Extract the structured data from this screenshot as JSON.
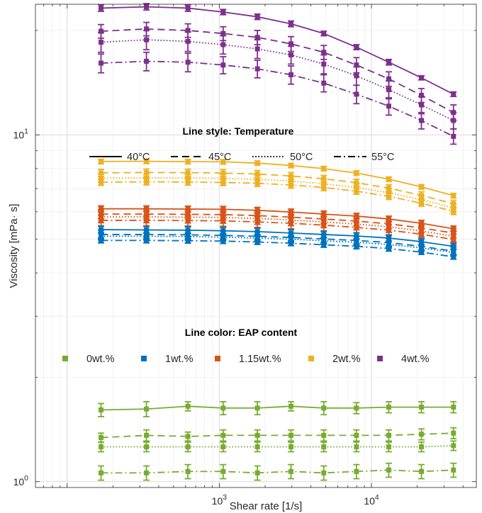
{
  "chart_data": {
    "type": "line",
    "xlabel": "Shear rate [1/s]",
    "ylabel": "Viscosity [mPa· s]",
    "xscale": "log",
    "yscale": "log",
    "xlim": [
      61.9,
      48900
    ],
    "ylim": [
      0.962,
      23.8
    ],
    "x_ticks": [
      {
        "value": 1000,
        "base": "10",
        "exp": "3"
      },
      {
        "value": 10000,
        "base": "10",
        "exp": "4"
      }
    ],
    "y_ticks": [
      {
        "value": 1,
        "label": "10",
        "exp": "0"
      },
      {
        "value": 10,
        "label": "10",
        "exp": "1"
      }
    ],
    "grid": true,
    "x": [
      167,
      332,
      622,
      1060,
      1780,
      2960,
      4860,
      7970,
      13000,
      21300,
      34600
    ],
    "legend_temperature": {
      "title": "Line style: Temperature",
      "entries": [
        {
          "label": "40°C",
          "style": "solid"
        },
        {
          "label": "45°C",
          "style": "dashed"
        },
        {
          "label": "50°C",
          "style": "dotted"
        },
        {
          "label": "55°C",
          "style": "dashdot"
        }
      ]
    },
    "legend_content": {
      "title": "Line color: EAP content",
      "entries": [
        {
          "label": "0wt.%",
          "color": "#77ac30"
        },
        {
          "label": "1wt.%",
          "color": "#0072bd"
        },
        {
          "label": "1.15wt.%",
          "color": "#d95319"
        },
        {
          "label": "2wt.%",
          "color": "#edb120"
        },
        {
          "label": "4wt.%",
          "color": "#7e2f8e"
        }
      ]
    },
    "series": [
      {
        "content": "4wt.%",
        "temperature": "40°C",
        "color": "#7e2f8e",
        "style": "solid",
        "values": [
          23.2,
          23.4,
          23.2,
          22.6,
          21.9,
          20.9,
          19.6,
          17.9,
          16.2,
          14.6,
          13.1
        ],
        "errors": [
          0.5,
          0.5,
          0.5,
          0.4,
          0.4,
          0.4,
          0.3,
          0.3,
          0.3,
          0.2,
          0.2
        ]
      },
      {
        "content": "4wt.%",
        "temperature": "45°C",
        "color": "#7e2f8e",
        "style": "dashed",
        "values": [
          19.9,
          20.2,
          20.0,
          19.6,
          19.1,
          18.3,
          17.3,
          15.9,
          14.5,
          13.0,
          11.6
        ],
        "errors": [
          0.9,
          0.9,
          0.9,
          0.9,
          0.9,
          0.9,
          0.8,
          0.8,
          0.7,
          0.6,
          0.6
        ]
      },
      {
        "content": "4wt.%",
        "temperature": "50°C",
        "color": "#7e2f8e",
        "style": "dotted",
        "values": [
          18.5,
          18.8,
          18.6,
          18.2,
          17.7,
          17.0,
          16.0,
          14.8,
          13.5,
          12.2,
          11.0
        ],
        "errors": [
          1.2,
          1.2,
          1.2,
          1.1,
          1.1,
          1.0,
          1.0,
          0.9,
          0.8,
          0.7,
          0.6
        ]
      },
      {
        "content": "4wt.%",
        "temperature": "55°C",
        "color": "#7e2f8e",
        "style": "dashdot",
        "values": [
          16.1,
          16.3,
          16.2,
          15.9,
          15.5,
          14.9,
          14.1,
          13.1,
          12.1,
          11.0,
          9.9
        ],
        "errors": [
          1.0,
          1.0,
          1.0,
          0.9,
          0.9,
          0.9,
          0.8,
          0.8,
          0.7,
          0.6,
          0.5
        ]
      },
      {
        "content": "2wt.%",
        "temperature": "40°C",
        "color": "#edb120",
        "style": "solid",
        "values": [
          8.38,
          8.39,
          8.37,
          8.36,
          8.29,
          8.16,
          7.99,
          7.76,
          7.45,
          7.08,
          6.68
        ],
        "errors": [
          0.13,
          0.13,
          0.13,
          0.13,
          0.12,
          0.12,
          0.12,
          0.12,
          0.11,
          0.11,
          0.1
        ]
      },
      {
        "content": "2wt.%",
        "temperature": "45°C",
        "color": "#edb120",
        "style": "dashed",
        "values": [
          7.77,
          7.79,
          7.78,
          7.76,
          7.71,
          7.61,
          7.47,
          7.28,
          7.02,
          6.69,
          6.33
        ],
        "errors": [
          0.18,
          0.18,
          0.18,
          0.18,
          0.18,
          0.18,
          0.17,
          0.17,
          0.16,
          0.16,
          0.15
        ]
      },
      {
        "content": "2wt.%",
        "temperature": "50°C",
        "color": "#edb120",
        "style": "dotted",
        "values": [
          7.5,
          7.52,
          7.51,
          7.49,
          7.45,
          7.36,
          7.23,
          7.05,
          6.81,
          6.5,
          6.16
        ],
        "errors": [
          0.2,
          0.2,
          0.2,
          0.2,
          0.2,
          0.2,
          0.2,
          0.19,
          0.18,
          0.18,
          0.17
        ]
      },
      {
        "content": "2wt.%",
        "temperature": "55°C",
        "color": "#edb120",
        "style": "dashdot",
        "values": [
          7.3,
          7.32,
          7.31,
          7.29,
          7.25,
          7.17,
          7.05,
          6.88,
          6.65,
          6.35,
          6.02
        ],
        "errors": [
          0.15,
          0.15,
          0.15,
          0.15,
          0.15,
          0.15,
          0.15,
          0.14,
          0.14,
          0.13,
          0.13
        ]
      },
      {
        "content": "1.15wt.%",
        "temperature": "40°C",
        "color": "#d95319",
        "style": "solid",
        "values": [
          6.12,
          6.12,
          6.11,
          6.1,
          6.06,
          5.99,
          5.91,
          5.83,
          5.72,
          5.56,
          5.36
        ],
        "errors": [
          0.12,
          0.12,
          0.12,
          0.12,
          0.12,
          0.12,
          0.12,
          0.11,
          0.11,
          0.11,
          0.1
        ]
      },
      {
        "content": "1.15wt.%",
        "temperature": "45°C",
        "color": "#d95319",
        "style": "dashed",
        "values": [
          5.91,
          5.91,
          5.9,
          5.89,
          5.85,
          5.79,
          5.72,
          5.64,
          5.54,
          5.39,
          5.21
        ],
        "errors": [
          0.18,
          0.18,
          0.18,
          0.18,
          0.18,
          0.18,
          0.17,
          0.17,
          0.17,
          0.16,
          0.16
        ]
      },
      {
        "content": "1.15wt.%",
        "temperature": "50°C",
        "color": "#d95319",
        "style": "dotted",
        "values": [
          5.8,
          5.8,
          5.79,
          5.78,
          5.74,
          5.68,
          5.61,
          5.53,
          5.43,
          5.28,
          5.1
        ],
        "errors": [
          0.22,
          0.22,
          0.22,
          0.22,
          0.22,
          0.21,
          0.21,
          0.21,
          0.2,
          0.2,
          0.19
        ]
      },
      {
        "content": "1.15wt.%",
        "temperature": "55°C",
        "color": "#d95319",
        "style": "dashdot",
        "values": [
          5.67,
          5.67,
          5.66,
          5.65,
          5.61,
          5.56,
          5.49,
          5.41,
          5.31,
          5.17,
          4.99
        ],
        "errors": [
          0.2,
          0.2,
          0.2,
          0.2,
          0.2,
          0.2,
          0.2,
          0.19,
          0.19,
          0.18,
          0.18
        ]
      },
      {
        "content": "1wt.%",
        "temperature": "40°C",
        "color": "#0072bd",
        "style": "solid",
        "values": [
          5.33,
          5.32,
          5.31,
          5.29,
          5.26,
          5.21,
          5.16,
          5.11,
          5.04,
          4.92,
          4.77
        ],
        "errors": [
          0.12,
          0.12,
          0.12,
          0.12,
          0.12,
          0.12,
          0.11,
          0.11,
          0.11,
          0.11,
          0.1
        ]
      },
      {
        "content": "1wt.%",
        "temperature": "45°C",
        "color": "#0072bd",
        "style": "dashed",
        "values": [
          5.16,
          5.16,
          5.15,
          5.13,
          5.1,
          5.06,
          5.01,
          4.96,
          4.89,
          4.77,
          4.62
        ],
        "errors": [
          0.15,
          0.15,
          0.15,
          0.15,
          0.15,
          0.15,
          0.14,
          0.14,
          0.14,
          0.14,
          0.13
        ]
      },
      {
        "content": "1wt.%",
        "temperature": "50°C",
        "color": "#0072bd",
        "style": "dotted",
        "values": [
          5.1,
          5.1,
          5.09,
          5.07,
          5.04,
          5.0,
          4.95,
          4.9,
          4.83,
          4.72,
          4.58
        ],
        "errors": [
          0.12,
          0.12,
          0.12,
          0.12,
          0.12,
          0.12,
          0.11,
          0.11,
          0.11,
          0.11,
          0.1
        ]
      },
      {
        "content": "1wt.%",
        "temperature": "55°C",
        "color": "#0072bd",
        "style": "dashdot",
        "values": [
          4.96,
          4.96,
          4.95,
          4.94,
          4.91,
          4.87,
          4.82,
          4.77,
          4.7,
          4.59,
          4.45
        ],
        "errors": [
          0.08,
          0.08,
          0.08,
          0.08,
          0.08,
          0.08,
          0.08,
          0.08,
          0.08,
          0.07,
          0.07
        ]
      },
      {
        "content": "0wt.%",
        "temperature": "40°C",
        "color": "#77ac30",
        "style": "solid",
        "values": [
          1.61,
          1.62,
          1.65,
          1.63,
          1.63,
          1.65,
          1.63,
          1.63,
          1.64,
          1.64,
          1.64
        ],
        "errors": [
          0.07,
          0.08,
          0.05,
          0.07,
          0.07,
          0.05,
          0.07,
          0.06,
          0.06,
          0.06,
          0.06
        ]
      },
      {
        "content": "0wt.%",
        "temperature": "45°C",
        "color": "#77ac30",
        "style": "dashed",
        "values": [
          1.34,
          1.36,
          1.35,
          1.36,
          1.36,
          1.36,
          1.36,
          1.36,
          1.36,
          1.37,
          1.38
        ],
        "errors": [
          0.04,
          0.05,
          0.04,
          0.05,
          0.05,
          0.05,
          0.05,
          0.05,
          0.05,
          0.05,
          0.05
        ]
      },
      {
        "content": "0wt.%",
        "temperature": "50°C",
        "color": "#77ac30",
        "style": "dotted",
        "values": [
          1.26,
          1.26,
          1.26,
          1.26,
          1.26,
          1.26,
          1.26,
          1.26,
          1.26,
          1.26,
          1.27
        ],
        "errors": [
          0.04,
          0.04,
          0.04,
          0.04,
          0.04,
          0.04,
          0.04,
          0.04,
          0.04,
          0.04,
          0.04
        ]
      },
      {
        "content": "0wt.%",
        "temperature": "55°C",
        "color": "#77ac30",
        "style": "dashdot",
        "values": [
          1.06,
          1.06,
          1.07,
          1.07,
          1.06,
          1.07,
          1.06,
          1.07,
          1.08,
          1.07,
          1.08
        ],
        "errors": [
          0.05,
          0.05,
          0.05,
          0.05,
          0.05,
          0.05,
          0.05,
          0.05,
          0.05,
          0.05,
          0.05
        ]
      }
    ]
  }
}
